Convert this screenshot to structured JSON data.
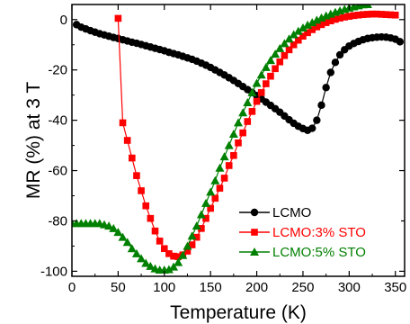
{
  "chart_data": {
    "type": "line",
    "title": "",
    "xlabel": "Temperature (K)",
    "ylabel": "MR (%) at 3 T",
    "xlim": [
      0,
      360
    ],
    "ylim": [
      -102,
      6
    ],
    "xticks": [
      0,
      50,
      100,
      150,
      200,
      250,
      300,
      350
    ],
    "xtick_labels": [
      "0",
      "50",
      "100",
      "150",
      "200",
      "250",
      "300",
      "350"
    ],
    "yticks": [
      0,
      -20,
      -40,
      -60,
      -80,
      -100
    ],
    "ytick_labels": [
      "0",
      "-20",
      "-40",
      "-60",
      "-80",
      "-100"
    ],
    "grid": false,
    "legend": "bottom-right",
    "series": [
      {
        "name": "LCMO",
        "color": "#000000",
        "marker": "circle",
        "x": [
          5,
          10,
          15,
          20,
          25,
          30,
          35,
          40,
          45,
          50,
          55,
          60,
          65,
          70,
          75,
          80,
          85,
          90,
          95,
          100,
          105,
          110,
          115,
          120,
          125,
          130,
          135,
          140,
          145,
          150,
          155,
          160,
          165,
          170,
          175,
          180,
          185,
          190,
          195,
          200,
          205,
          210,
          215,
          220,
          225,
          230,
          235,
          240,
          245,
          250,
          255,
          260,
          265,
          270,
          275,
          280,
          285,
          290,
          295,
          300,
          305,
          310,
          315,
          320,
          325,
          330,
          335,
          340,
          345,
          350,
          355
        ],
        "values": [
          -2,
          -3,
          -3.7,
          -4.4,
          -5,
          -5.6,
          -6.1,
          -6.6,
          -7.1,
          -7.5,
          -8,
          -8.5,
          -9,
          -9.4,
          -9.9,
          -10.4,
          -10.9,
          -11.4,
          -11.9,
          -12.4,
          -13,
          -13.5,
          -14,
          -14.6,
          -15.2,
          -15.8,
          -16.5,
          -17.3,
          -18.1,
          -19,
          -20,
          -21,
          -22,
          -23.1,
          -24.2,
          -25.4,
          -26.6,
          -27.8,
          -29,
          -30.2,
          -31.5,
          -32.8,
          -34.1,
          -35.4,
          -36.8,
          -38.3,
          -39.8,
          -41.2,
          -42.4,
          -43.3,
          -44,
          -43.2,
          -40,
          -34,
          -27,
          -21,
          -17,
          -14,
          -12,
          -10.5,
          -9.5,
          -8.7,
          -8,
          -7.5,
          -7.2,
          -7,
          -6.9,
          -7,
          -7.3,
          -7.8,
          -8.8
        ]
      },
      {
        "name": "LCMO:3% STO",
        "color": "#ff0000",
        "marker": "square",
        "x": [
          50,
          55,
          60,
          65,
          70,
          75,
          80,
          85,
          90,
          95,
          100,
          105,
          110,
          115,
          120,
          125,
          130,
          135,
          140,
          145,
          150,
          155,
          160,
          165,
          170,
          175,
          180,
          185,
          190,
          195,
          200,
          205,
          210,
          215,
          220,
          225,
          230,
          235,
          240,
          245,
          250,
          255,
          260,
          265,
          270,
          275,
          280,
          285,
          290,
          295,
          300,
          305,
          310,
          315,
          320,
          325,
          330,
          335,
          340,
          345,
          350
        ],
        "values": [
          0.5,
          -41,
          -48,
          -55,
          -62,
          -68,
          -74,
          -79,
          -84,
          -88,
          -91,
          -93,
          -94,
          -94.2,
          -93.5,
          -92,
          -89.5,
          -86.5,
          -83,
          -79,
          -75,
          -71,
          -67,
          -63,
          -58,
          -54,
          -49,
          -45,
          -40.5,
          -36.5,
          -32.5,
          -29,
          -25.5,
          -22.5,
          -19.5,
          -16.8,
          -14.3,
          -12,
          -10,
          -8.2,
          -6.6,
          -5.2,
          -4,
          -2.9,
          -2,
          -1.2,
          -0.5,
          0.1,
          0.6,
          1,
          1.3,
          1.6,
          1.8,
          2,
          2.1,
          2.2,
          2.2,
          2.1,
          2,
          1.9,
          1.8
        ]
      },
      {
        "name": "LCMO:5% STO",
        "color": "#008000",
        "marker": "triangle",
        "x": [
          0,
          5,
          10,
          15,
          20,
          25,
          30,
          35,
          40,
          45,
          50,
          55,
          60,
          65,
          70,
          75,
          80,
          85,
          90,
          95,
          100,
          105,
          110,
          115,
          120,
          125,
          130,
          135,
          140,
          145,
          150,
          155,
          160,
          165,
          170,
          175,
          180,
          185,
          190,
          195,
          200,
          205,
          210,
          215,
          220,
          225,
          230,
          235,
          240,
          245,
          250,
          255,
          260,
          265,
          270,
          275,
          280,
          285,
          290,
          295,
          300,
          305,
          310,
          315,
          320
        ],
        "values": [
          -81,
          -81,
          -81,
          -81,
          -81,
          -81,
          -81,
          -81.5,
          -82,
          -83,
          -84.5,
          -86.5,
          -88.5,
          -91,
          -93,
          -95,
          -96.8,
          -98,
          -99,
          -99.5,
          -99.5,
          -99.3,
          -98.3,
          -96.5,
          -93.7,
          -90,
          -86,
          -82,
          -77.5,
          -73,
          -68.5,
          -64,
          -59,
          -54.5,
          -50,
          -45.5,
          -41,
          -37,
          -33,
          -29,
          -25.3,
          -22,
          -19,
          -16.2,
          -13.7,
          -11.5,
          -9.5,
          -7.7,
          -6,
          -4.6,
          -3.3,
          -2.2,
          -1.2,
          -0.2,
          0.7,
          1.5,
          2.2,
          2.9,
          3.5,
          4.1,
          4.6,
          5.1,
          5.5,
          5.9,
          6
        ]
      }
    ]
  }
}
